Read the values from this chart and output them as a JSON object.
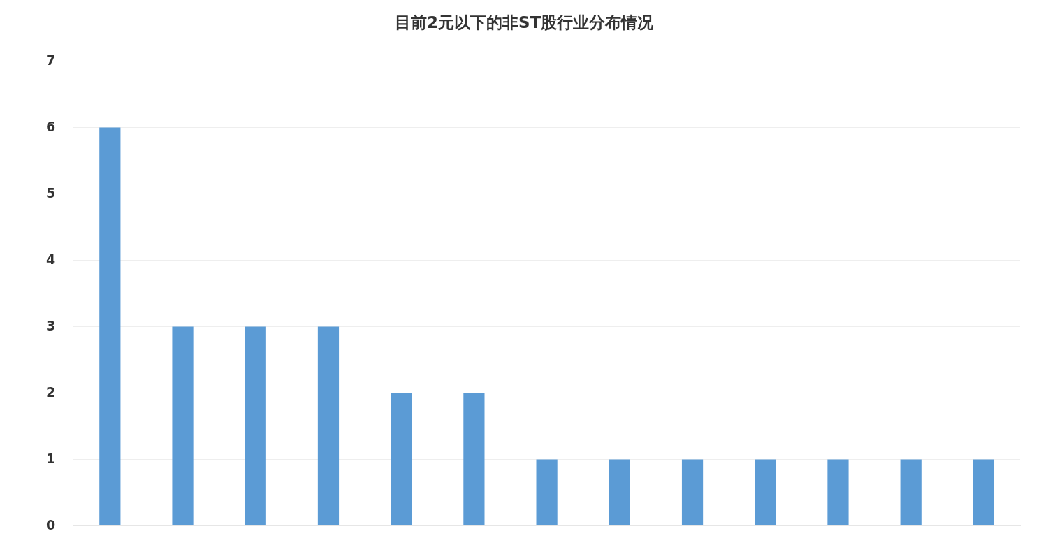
{
  "chart_data": {
    "type": "bar",
    "title": "目前2元以下的非ST股行业分布情况",
    "categories": [
      null,
      null,
      null,
      null,
      null,
      null,
      null,
      null,
      null,
      null,
      null,
      null,
      null
    ],
    "values": [
      6,
      3,
      3,
      3,
      2,
      2,
      1,
      1,
      1,
      1,
      1,
      1,
      1
    ],
    "color": "#5b9bd5",
    "ylim": [
      0,
      7
    ],
    "yticks": [
      0,
      1,
      2,
      3,
      4,
      5,
      6,
      7
    ],
    "grid": "y",
    "tick_labels": "y"
  }
}
